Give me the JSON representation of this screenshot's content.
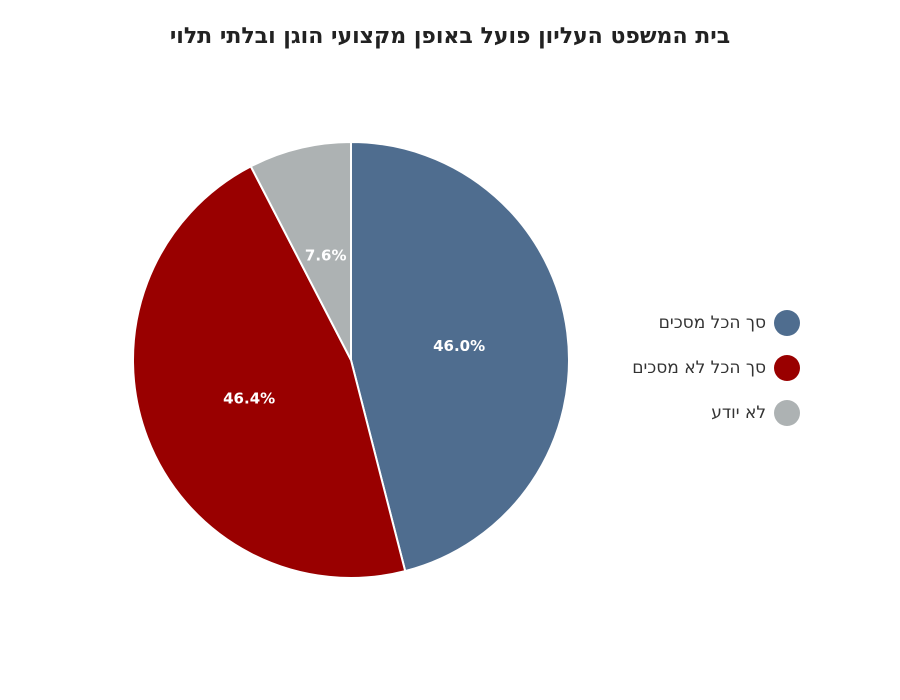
{
  "chart_data": {
    "type": "pie",
    "title": "בית המשפט העליון פועל באופן מקצועי הוגן ובלתי תלוי",
    "categories": [
      "סך הכל מסכים",
      "סך הכל לא מסכים",
      "לא יודע"
    ],
    "values": [
      46.0,
      46.4,
      7.6
    ],
    "value_labels": [
      "46.0%",
      "46.4%",
      "7.6%"
    ],
    "colors": [
      "#4f6d8f",
      "#990000",
      "#adb2b3"
    ],
    "legend_position": "right",
    "start_angle": "top, clockwise"
  }
}
